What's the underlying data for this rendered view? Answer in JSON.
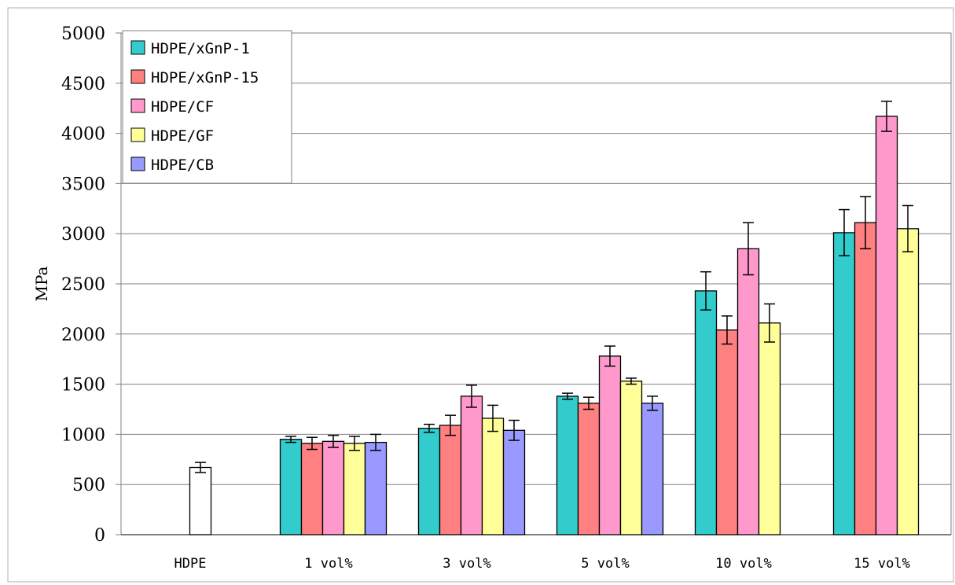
{
  "chart_data": {
    "type": "bar",
    "title": "",
    "xlabel": "",
    "ylabel": "MPa",
    "ylim": [
      0,
      5000
    ],
    "yticks": [
      0,
      500,
      1000,
      1500,
      2000,
      2500,
      3000,
      3500,
      4000,
      4500,
      5000
    ],
    "grid": true,
    "legend_position": "top-left",
    "categories": [
      "HDPE",
      "1 vol%",
      "3 vol%",
      "5 vol%",
      "10 vol%",
      "15 vol%"
    ],
    "series": [
      {
        "name": "HDPE/xGnP-1",
        "color": "#33CCCC",
        "values": [
          0,
          950,
          1060,
          1380,
          2430,
          3010
        ],
        "errors": [
          0,
          30,
          40,
          30,
          190,
          230
        ]
      },
      {
        "name": "HDPE/xGnP-15",
        "color": "#FF8080",
        "values": [
          0,
          910,
          1090,
          1310,
          2040,
          3110
        ],
        "errors": [
          0,
          60,
          100,
          60,
          140,
          260
        ]
      },
      {
        "name": "HDPE/CF",
        "color": "#FF99CC",
        "values": [
          0,
          930,
          1380,
          1780,
          2850,
          4170
        ],
        "errors": [
          0,
          60,
          110,
          100,
          260,
          150
        ]
      },
      {
        "name": "HDPE/GF",
        "color": "#FFFF99",
        "values": [
          0,
          910,
          1160,
          1530,
          2110,
          3050
        ],
        "errors": [
          0,
          70,
          130,
          30,
          190,
          230
        ]
      },
      {
        "name": "HDPE/CB",
        "color": "#9999FF",
        "values": [
          0,
          920,
          1040,
          1310,
          0,
          0
        ],
        "errors": [
          0,
          80,
          100,
          70,
          0,
          0
        ]
      }
    ],
    "baseline": {
      "category": "HDPE",
      "value": 670,
      "error": 50,
      "color": "#FFFFFF"
    }
  }
}
